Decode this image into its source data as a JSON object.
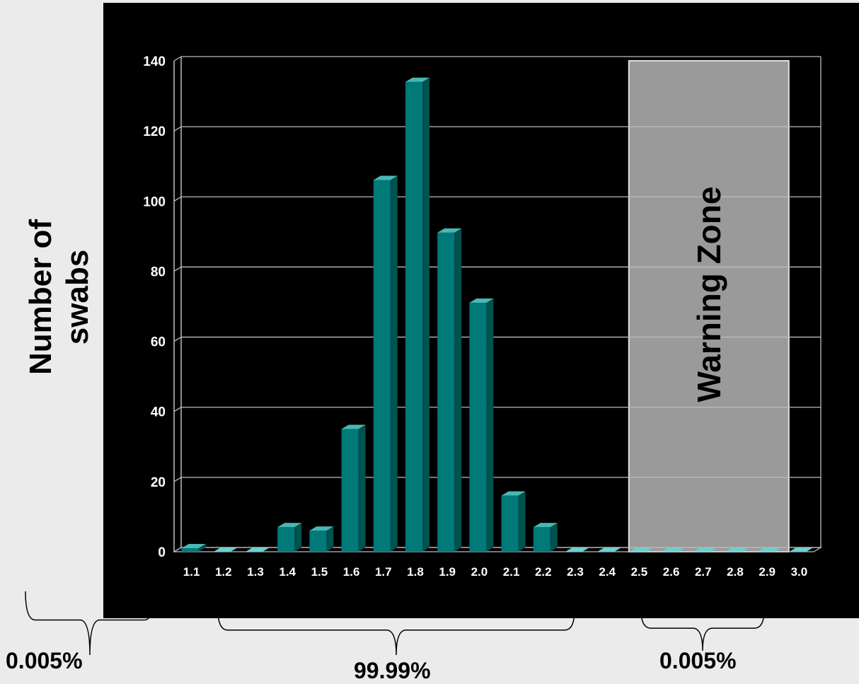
{
  "chart_data": {
    "type": "bar",
    "ylabel": [
      "Number of",
      "swabs"
    ],
    "xlabel": "",
    "categories": [
      "1.1",
      "1.2",
      "1.3",
      "1.4",
      "1.5",
      "1.6",
      "1.7",
      "1.8",
      "1.9",
      "2.0",
      "2.1",
      "2.2",
      "2.3",
      "2.4",
      "2.5",
      "2.6",
      "2.7",
      "2.8",
      "2.9",
      "3.0"
    ],
    "values": [
      1,
      0,
      0,
      7,
      6,
      35,
      106,
      134,
      91,
      71,
      16,
      7,
      0,
      0,
      0,
      0,
      0,
      0,
      0,
      0
    ],
    "ylim": [
      0,
      140
    ],
    "yticks": [
      0,
      20,
      40,
      60,
      80,
      100,
      120,
      140
    ],
    "grid": true,
    "bar_color": "#007a78",
    "bar_side_color": "#00514f",
    "bar_top_color": "#49b8b4",
    "zero_bar_color": "#6fcfcb",
    "background": "#000000",
    "warning_zone": {
      "label": "Warning Zone",
      "from": "2.5",
      "to": "2.9",
      "color": "#9a9a9a"
    },
    "annotations": [
      {
        "text": "0.005%",
        "from": "1.1",
        "to": "1.1"
      },
      {
        "text": "99.99%",
        "from": "1.6",
        "to": "2.2"
      },
      {
        "text": "0.005%",
        "from": "2.5",
        "to": "2.8"
      }
    ]
  }
}
